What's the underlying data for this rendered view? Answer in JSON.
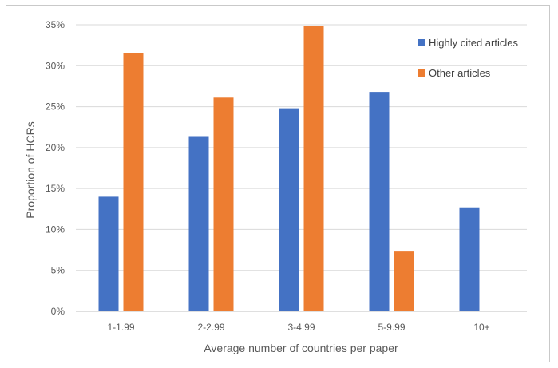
{
  "chart_data": {
    "type": "bar",
    "title": "",
    "xlabel": "Average number of countries per paper",
    "ylabel": "Proportion of HCRs",
    "categories": [
      "1-1.99",
      "2-2.99",
      "3-4.99",
      "5-9.99",
      "10+"
    ],
    "series": [
      {
        "name": "Highly cited articles",
        "color": "#4472C4",
        "values": [
          14.0,
          21.4,
          24.8,
          26.8,
          12.7
        ]
      },
      {
        "name": "Other articles",
        "color": "#ED7D31",
        "values": [
          31.5,
          26.1,
          34.9,
          7.3,
          0
        ]
      }
    ],
    "ylim": [
      0,
      35
    ],
    "yticks": [
      0,
      5,
      10,
      15,
      20,
      25,
      30,
      35
    ],
    "ytick_labels": [
      "0%",
      "5%",
      "10%",
      "15%",
      "20%",
      "25%",
      "30%",
      "35%"
    ],
    "grid": true,
    "legend_position": "top-right"
  }
}
